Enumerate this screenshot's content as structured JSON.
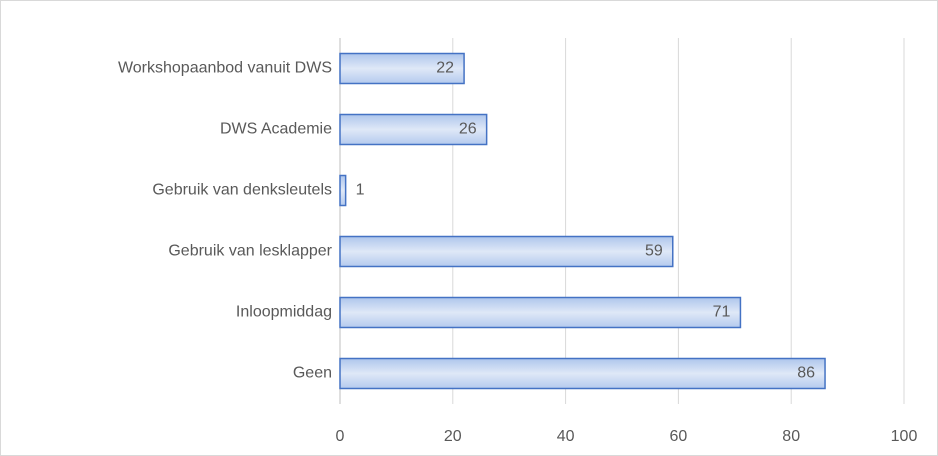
{
  "chart_data": {
    "type": "bar",
    "orientation": "horizontal",
    "categories": [
      "Workshopaanbod vanuit DWS",
      "DWS Academie",
      "Gebruik van denksleutels",
      "Gebruik van lesklapper",
      "Inloopmiddag",
      "Geen"
    ],
    "values": [
      22,
      26,
      1,
      59,
      71,
      86
    ],
    "color": "#4472c4",
    "xlim": [
      0,
      100
    ],
    "xticks": [
      0,
      20,
      40,
      60,
      80,
      100
    ],
    "grid": true
  }
}
